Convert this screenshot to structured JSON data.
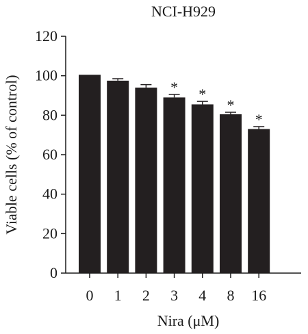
{
  "chart_data": {
    "type": "bar",
    "title": "NCI-H929",
    "xlabel": "Nira (μM)",
    "ylabel": "Viable cells (% of control)",
    "categories": [
      "0",
      "1",
      "2",
      "3",
      "4",
      "8",
      "16"
    ],
    "values": [
      100.5,
      97.5,
      94,
      89,
      85.5,
      80.5,
      73
    ],
    "errors": [
      0,
      1.0,
      1.5,
      1.5,
      1.5,
      1.0,
      1.2
    ],
    "significance": [
      "",
      "",
      "",
      "*",
      "*",
      "*",
      "*"
    ],
    "ylim": [
      0,
      120
    ],
    "yticks": [
      0,
      20,
      40,
      60,
      80,
      100,
      120
    ],
    "grid": false,
    "bar_color": "#231f20"
  }
}
